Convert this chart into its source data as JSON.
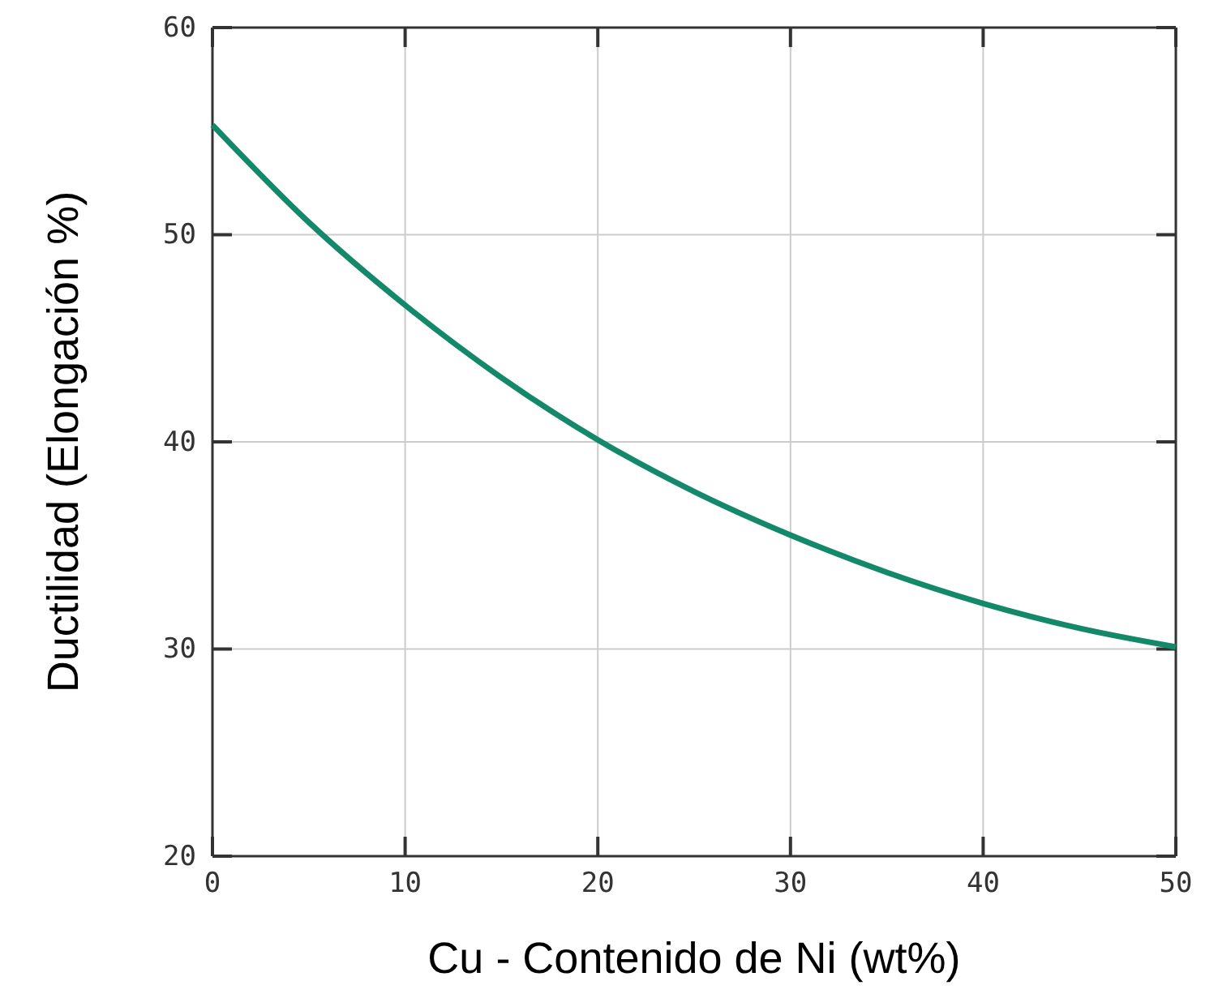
{
  "chart_data": {
    "type": "line",
    "xlabel": "Cu - Contenido de Ni (wt%)",
    "ylabel": "Ductilidad (Elongación %)",
    "x": [
      0,
      5,
      10,
      15,
      20,
      25,
      30,
      35,
      40,
      45,
      50
    ],
    "series": [
      {
        "color": "#13896a",
        "values": [
          55.3,
          50.6,
          46.6,
          43.1,
          40.1,
          37.6,
          35.5,
          33.7,
          32.2,
          31,
          30.1
        ]
      }
    ],
    "xlim": [
      0,
      50
    ],
    "xticks": [
      0,
      10,
      20,
      30,
      40,
      50
    ],
    "ylim": [
      20,
      60
    ],
    "yticks": [
      20,
      30,
      40,
      50,
      60
    ],
    "grid": true,
    "marker": "none",
    "line_style": "solid"
  }
}
